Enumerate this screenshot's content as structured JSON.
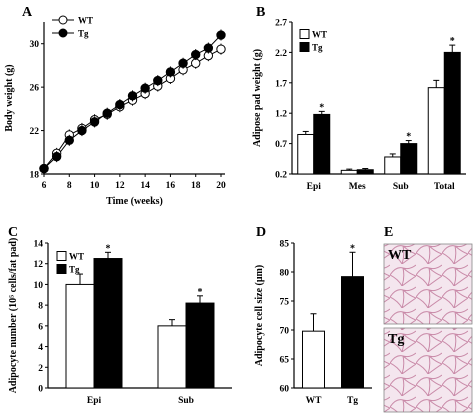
{
  "panels": [
    {
      "letter": "A",
      "chart_data": {
        "type": "line",
        "xlabel": "Time (weeks)",
        "ylabel": "Body weight (g)",
        "xlim": [
          6,
          20
        ],
        "ylim": [
          18,
          32
        ],
        "xticks": [
          6,
          8,
          10,
          12,
          14,
          16,
          18,
          20
        ],
        "yticks": [
          18,
          22,
          26,
          30
        ],
        "legend_position": "top-left",
        "x": [
          6,
          7,
          8,
          9,
          10,
          11,
          12,
          13,
          14,
          15,
          16,
          17,
          18,
          19,
          20
        ],
        "series": [
          {
            "name": "WT",
            "marker": "open",
            "values": [
              18.5,
              19.9,
              21.6,
              22.2,
              23.0,
              23.5,
              24.2,
              24.8,
              25.4,
              26.1,
              26.8,
              27.6,
              28.2,
              28.9,
              29.5
            ]
          },
          {
            "name": "Tg",
            "marker": "filled",
            "values": [
              18.5,
              19.6,
              21.1,
              22.0,
              22.8,
              23.6,
              24.4,
              25.2,
              25.9,
              26.6,
              27.4,
              28.2,
              29.0,
              29.6,
              30.8
            ]
          }
        ]
      }
    },
    {
      "letter": "B",
      "chart_data": {
        "type": "bar",
        "ylabel": "Adipose pad weight (g)",
        "ylim": [
          0.2,
          2.7
        ],
        "yticks": [
          "0.2",
          "0.7",
          "1.2",
          "1.7",
          "2.2",
          "2.7"
        ],
        "categories": [
          "Epi",
          "Mes",
          "Sub",
          "Total"
        ],
        "legend_position": "top-left",
        "series": [
          {
            "name": "WT",
            "fill": "open",
            "values": [
              0.85,
              0.26,
              0.48,
              1.62
            ],
            "errors": [
              0.05,
              0.02,
              0.05,
              0.12
            ]
          },
          {
            "name": "Tg",
            "fill": "filled",
            "values": [
              1.18,
              0.27,
              0.7,
              2.2
            ],
            "errors": [
              0.05,
              0.02,
              0.05,
              0.12
            ]
          }
        ],
        "significance": [
          "*",
          "",
          "*",
          "*"
        ]
      }
    },
    {
      "letter": "C",
      "chart_data": {
        "type": "bar",
        "ylabel": "Adipocyte number (10⁵ cells/fat pad)",
        "ylim": [
          0,
          14
        ],
        "yticks": [
          "0",
          "2",
          "4",
          "6",
          "8",
          "10",
          "12",
          "14"
        ],
        "categories": [
          "Epi",
          "Sub"
        ],
        "legend_position": "top-left",
        "series": [
          {
            "name": "WT",
            "fill": "open",
            "values": [
              10.0,
              6.0
            ],
            "errors": [
              1.0,
              0.6
            ]
          },
          {
            "name": "Tg",
            "fill": "filled",
            "values": [
              12.5,
              8.2
            ],
            "errors": [
              0.6,
              0.7
            ]
          }
        ],
        "significance": [
          "*",
          "*"
        ]
      }
    },
    {
      "letter": "D",
      "chart_data": {
        "type": "bar",
        "ylabel": "Adipocyte cell size (μm)",
        "ylim": [
          60,
          85
        ],
        "yticks": [
          "60",
          "65",
          "70",
          "75",
          "80",
          "85"
        ],
        "categories": [
          "WT",
          "Tg"
        ],
        "values": [
          69.8,
          79.2
        ],
        "errors": [
          3.0,
          4.2
        ],
        "fills": [
          "open",
          "filled"
        ],
        "significance": [
          "",
          "*"
        ]
      }
    },
    {
      "letter": "E",
      "images": [
        {
          "label": "WT"
        },
        {
          "label": "Tg"
        }
      ]
    }
  ],
  "colors": {
    "open": "#ffffff",
    "filled": "#000000",
    "tissue": "#f4e6ee",
    "membrane": "#c98aa8"
  }
}
